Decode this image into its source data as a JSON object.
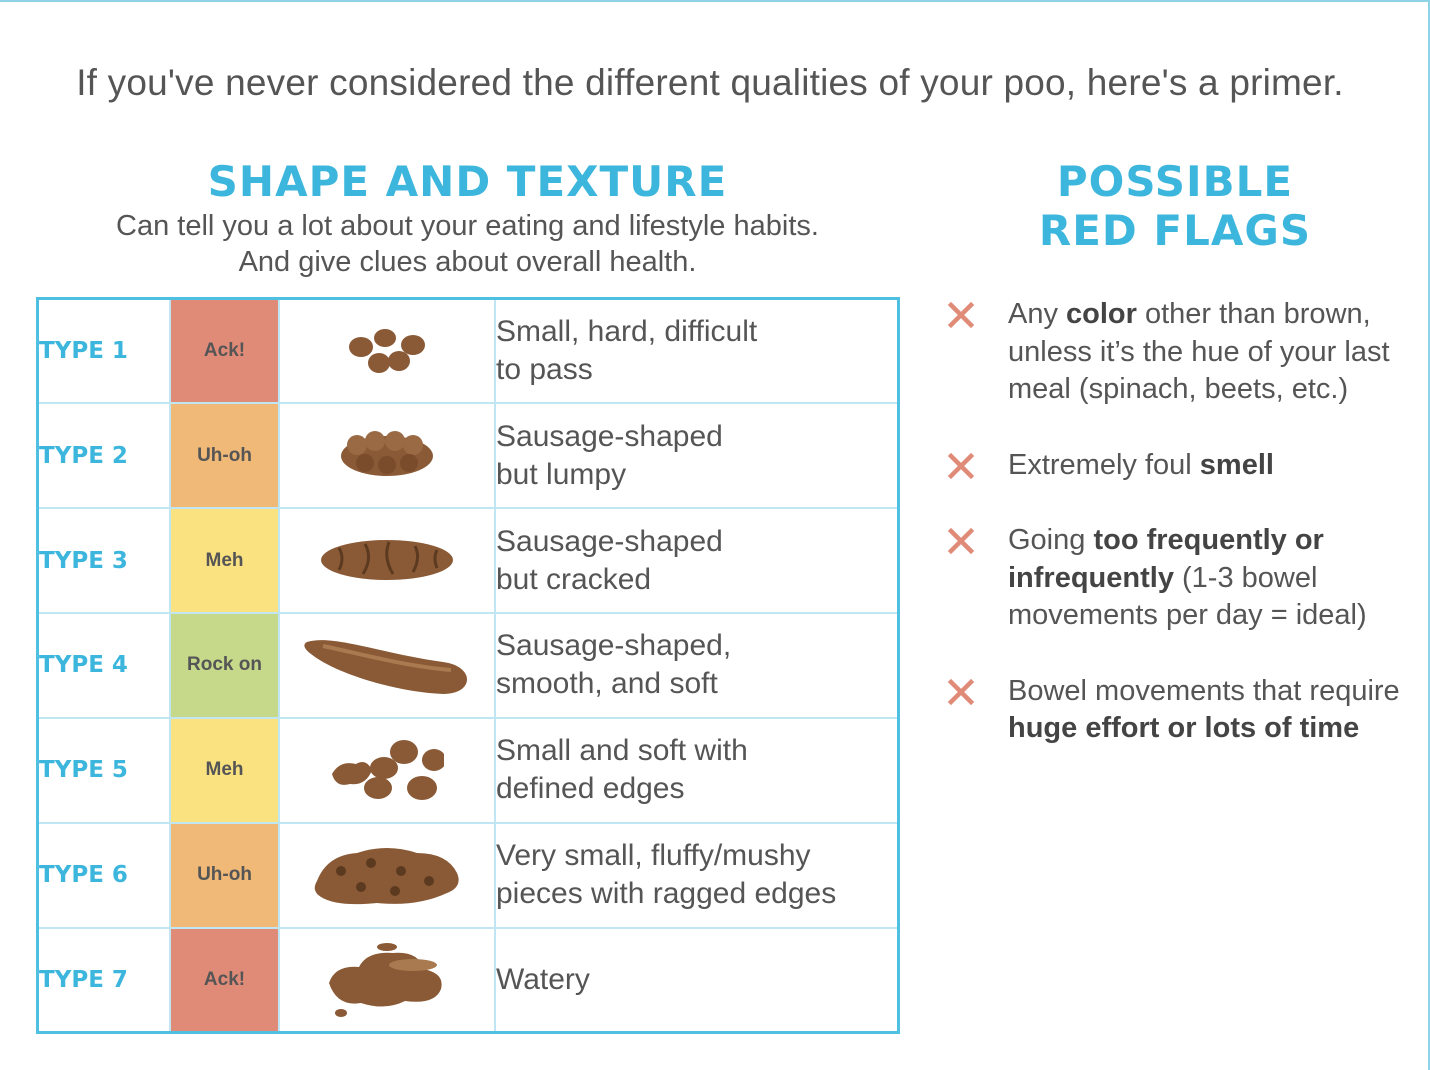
{
  "intro": "If you've never considered the different qualities of your poo, here's a primer.",
  "shape_section": {
    "title": "SHAPE AND TEXTURE",
    "subtitle_line1": "Can tell you a lot about your eating and lifestyle habits.",
    "subtitle_line2": "And give clues about overall health."
  },
  "rating_colors": {
    "Ack!": "#e08b78",
    "Uh-oh": "#f0b978",
    "Meh": "#fae281",
    "Rock on": "#c6d98a"
  },
  "types": [
    {
      "label": "TYPE 1",
      "rating": "Ack!",
      "desc1": "Small, hard, difficult",
      "desc2": "to pass",
      "icon": "small-hard-lumps-icon"
    },
    {
      "label": "TYPE 2",
      "rating": "Uh-oh",
      "desc1": "Sausage-shaped",
      "desc2": "but lumpy",
      "icon": "lumpy-sausage-icon"
    },
    {
      "label": "TYPE 3",
      "rating": "Meh",
      "desc1": "Sausage-shaped",
      "desc2": "but cracked",
      "icon": "cracked-sausage-icon"
    },
    {
      "label": "TYPE 4",
      "rating": "Rock on",
      "desc1": "Sausage-shaped,",
      "desc2": "smooth, and soft",
      "icon": "smooth-sausage-icon"
    },
    {
      "label": "TYPE 5",
      "rating": "Meh",
      "desc1": "Small and soft with",
      "desc2": "defined edges",
      "icon": "soft-blobs-icon"
    },
    {
      "label": "TYPE 6",
      "rating": "Uh-oh",
      "desc1": "Very small, fluffy/mushy",
      "desc2": "pieces with ragged edges",
      "icon": "mushy-pieces-icon"
    },
    {
      "label": "TYPE 7",
      "rating": "Ack!",
      "desc1": "Watery",
      "desc2": "",
      "icon": "watery-puddle-icon"
    }
  ],
  "flags_section": {
    "title_line1": "POSSIBLE",
    "title_line2": "RED FLAGS"
  },
  "flags": [
    {
      "pre": "Any ",
      "bold": "color",
      "post": " other than brown, unless it’s the hue of your last meal (spinach, beets, etc.)"
    },
    {
      "pre": "Extremely foul ",
      "bold": "smell",
      "post": ""
    },
    {
      "pre": "Going ",
      "bold": "too frequently or infrequently",
      "post": " (1-3 bowel movements per day = ideal)"
    },
    {
      "pre": "Bowel movements that require ",
      "bold": "huge effort or lots of time",
      "post": ""
    }
  ],
  "icon_color": "#8a5a36",
  "flag_icon_color": "#e08b78"
}
